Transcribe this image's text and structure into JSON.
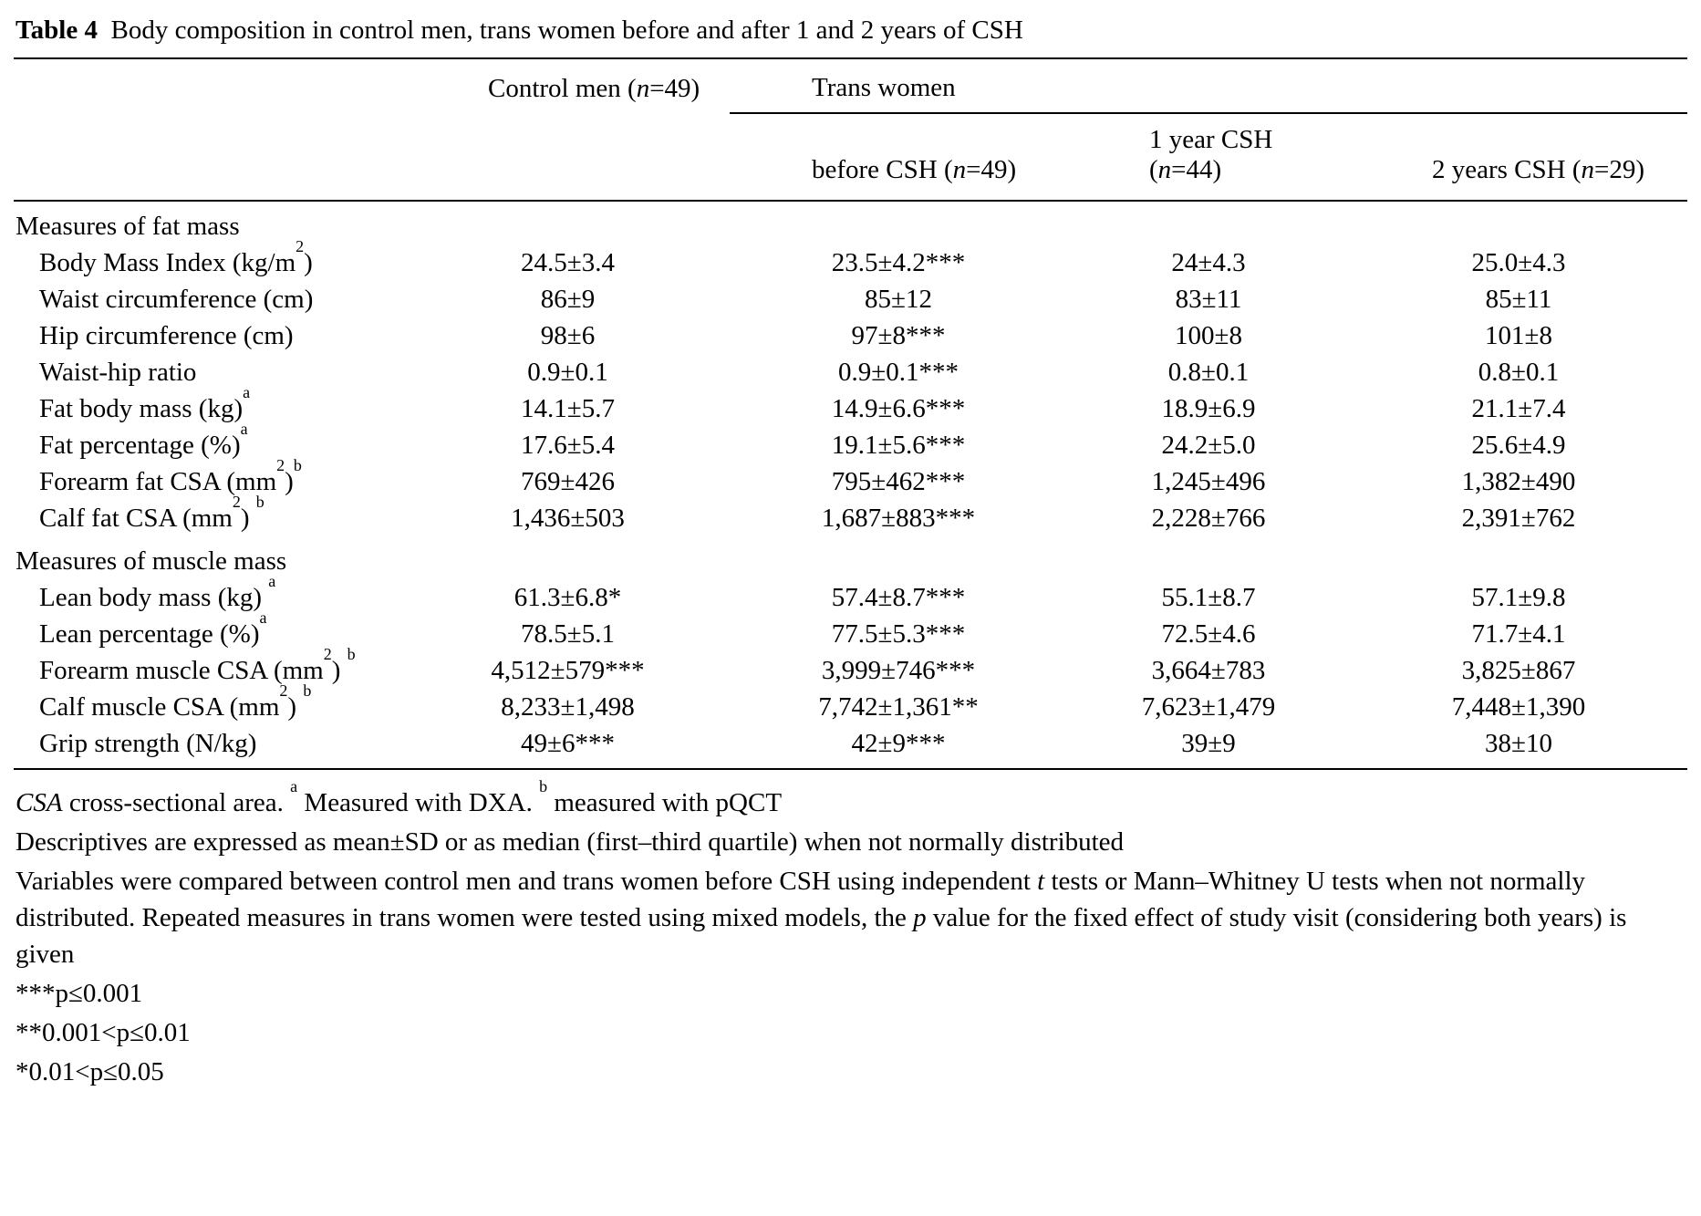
{
  "title": [
    {
      "t": "Table 4",
      "s": "b"
    },
    {
      "t": "  Body composition in control men, trans women before and after 1 and 2 years of CSH"
    }
  ],
  "table": {
    "group_header": {
      "control": [
        {
          "t": "Control men ("
        },
        {
          "t": "n",
          "s": "i"
        },
        {
          "t": "=49)"
        }
      ],
      "trans": [
        {
          "t": "Trans women"
        }
      ]
    },
    "sub_headers": [
      [
        {
          "t": "before CSH ("
        },
        {
          "t": "n",
          "s": "i"
        },
        {
          "t": "=49)"
        }
      ],
      [
        {
          "t": "1 year CSH ("
        },
        {
          "t": "n",
          "s": "i"
        },
        {
          "t": "=44)"
        }
      ],
      [
        {
          "t": "2 years CSH ("
        },
        {
          "t": "n",
          "s": "i"
        },
        {
          "t": "=29)"
        }
      ]
    ],
    "sections": [
      {
        "name": [
          {
            "t": "Measures of fat mass"
          }
        ],
        "rows": [
          {
            "label": [
              {
                "t": "Body Mass Index (kg/m"
              },
              {
                "t": "2",
                "s": "sup"
              },
              {
                "t": ")"
              }
            ],
            "values": [
              "24.5±3.4",
              "23.5±4.2***",
              "24±4.3",
              "25.0±4.3"
            ]
          },
          {
            "label": [
              {
                "t": "Waist circumference (cm)"
              }
            ],
            "values": [
              "86±9",
              "85±12",
              "83±11",
              "85±11"
            ]
          },
          {
            "label": [
              {
                "t": "Hip circumference (cm)"
              }
            ],
            "values": [
              "98±6",
              "97±8***",
              "100±8",
              "101±8"
            ]
          },
          {
            "label": [
              {
                "t": "Waist-hip ratio"
              }
            ],
            "values": [
              "0.9±0.1",
              "0.9±0.1***",
              "0.8±0.1",
              "0.8±0.1"
            ]
          },
          {
            "label": [
              {
                "t": "Fat body mass (kg)"
              },
              {
                "t": "a",
                "s": "sup"
              }
            ],
            "values": [
              "14.1±5.7",
              "14.9±6.6***",
              "18.9±6.9",
              "21.1±7.4"
            ]
          },
          {
            "label": [
              {
                "t": "Fat percentage (%)"
              },
              {
                "t": "a",
                "s": "sup"
              }
            ],
            "values": [
              "17.6±5.4",
              "19.1±5.6***",
              "24.2±5.0",
              "25.6±4.9"
            ]
          },
          {
            "label": [
              {
                "t": "Forearm fat CSA (mm"
              },
              {
                "t": "2",
                "s": "sup"
              },
              {
                "t": ")"
              },
              {
                "t": "b",
                "s": "sup"
              }
            ],
            "values": [
              "769±426",
              "795±462***",
              "1,245±496",
              "1,382±490"
            ]
          },
          {
            "label": [
              {
                "t": "Calf fat CSA (mm"
              },
              {
                "t": "2",
                "s": "sup"
              },
              {
                "t": ") "
              },
              {
                "t": "b",
                "s": "sup"
              }
            ],
            "values": [
              "1,436±503",
              "1,687±883***",
              "2,228±766",
              "2,391±762"
            ]
          }
        ]
      },
      {
        "name": [
          {
            "t": "Measures of muscle mass"
          }
        ],
        "rows": [
          {
            "label": [
              {
                "t": "Lean body mass (kg) "
              },
              {
                "t": "a",
                "s": "sup"
              }
            ],
            "values": [
              "61.3±6.8*",
              "57.4±8.7***",
              "55.1±8.7",
              "57.1±9.8"
            ]
          },
          {
            "label": [
              {
                "t": "Lean percentage (%)"
              },
              {
                "t": "a",
                "s": "sup"
              }
            ],
            "values": [
              "78.5±5.1",
              "77.5±5.3***",
              "72.5±4.6",
              "71.7±4.1"
            ]
          },
          {
            "label": [
              {
                "t": "Forearm muscle CSA (mm"
              },
              {
                "t": "2",
                "s": "sup"
              },
              {
                "t": ") "
              },
              {
                "t": "b",
                "s": "sup"
              }
            ],
            "values": [
              "4,512±579***",
              "3,999±746***",
              "3,664±783",
              "3,825±867"
            ]
          },
          {
            "label": [
              {
                "t": "Calf muscle CSA (mm"
              },
              {
                "t": "2",
                "s": "sup"
              },
              {
                "t": ") "
              },
              {
                "t": "b",
                "s": "sup"
              }
            ],
            "values": [
              "8,233±1,498",
              "7,742±1,361**",
              "7,623±1,479",
              "7,448±1,390"
            ]
          },
          {
            "label": [
              {
                "t": "Grip strength (N/kg)"
              }
            ],
            "values": [
              "49±6***",
              "42±9***",
              "39±9",
              "38±10"
            ]
          }
        ]
      }
    ]
  },
  "footnotes": {
    "abbrev": [
      {
        "t": "CSA",
        "s": "i"
      },
      {
        "t": " cross-sectional area. "
      },
      {
        "t": "a",
        "s": "sup"
      },
      {
        "t": " Measured with DXA. "
      },
      {
        "t": "b",
        "s": "sup"
      },
      {
        "t": " measured with pQCT"
      }
    ],
    "descriptives": "Descriptives are expressed as mean±SD or as median (first–third quartile) when not normally distributed",
    "statistics": [
      {
        "t": "Variables were compared between control men and trans women before CSH using independent "
      },
      {
        "t": "t",
        "s": "i"
      },
      {
        "t": " tests or Mann–Whitney U tests when not normally distributed. Repeated measures in trans women were tested using mixed models, the "
      },
      {
        "t": "p",
        "s": "i"
      },
      {
        "t": " value for the fixed effect of study visit (considering both years) is given"
      }
    ],
    "sig_001": "***p≤0.001",
    "sig_01": "**0.001<p≤0.01",
    "sig_05": "*0.01<p≤0.05"
  }
}
